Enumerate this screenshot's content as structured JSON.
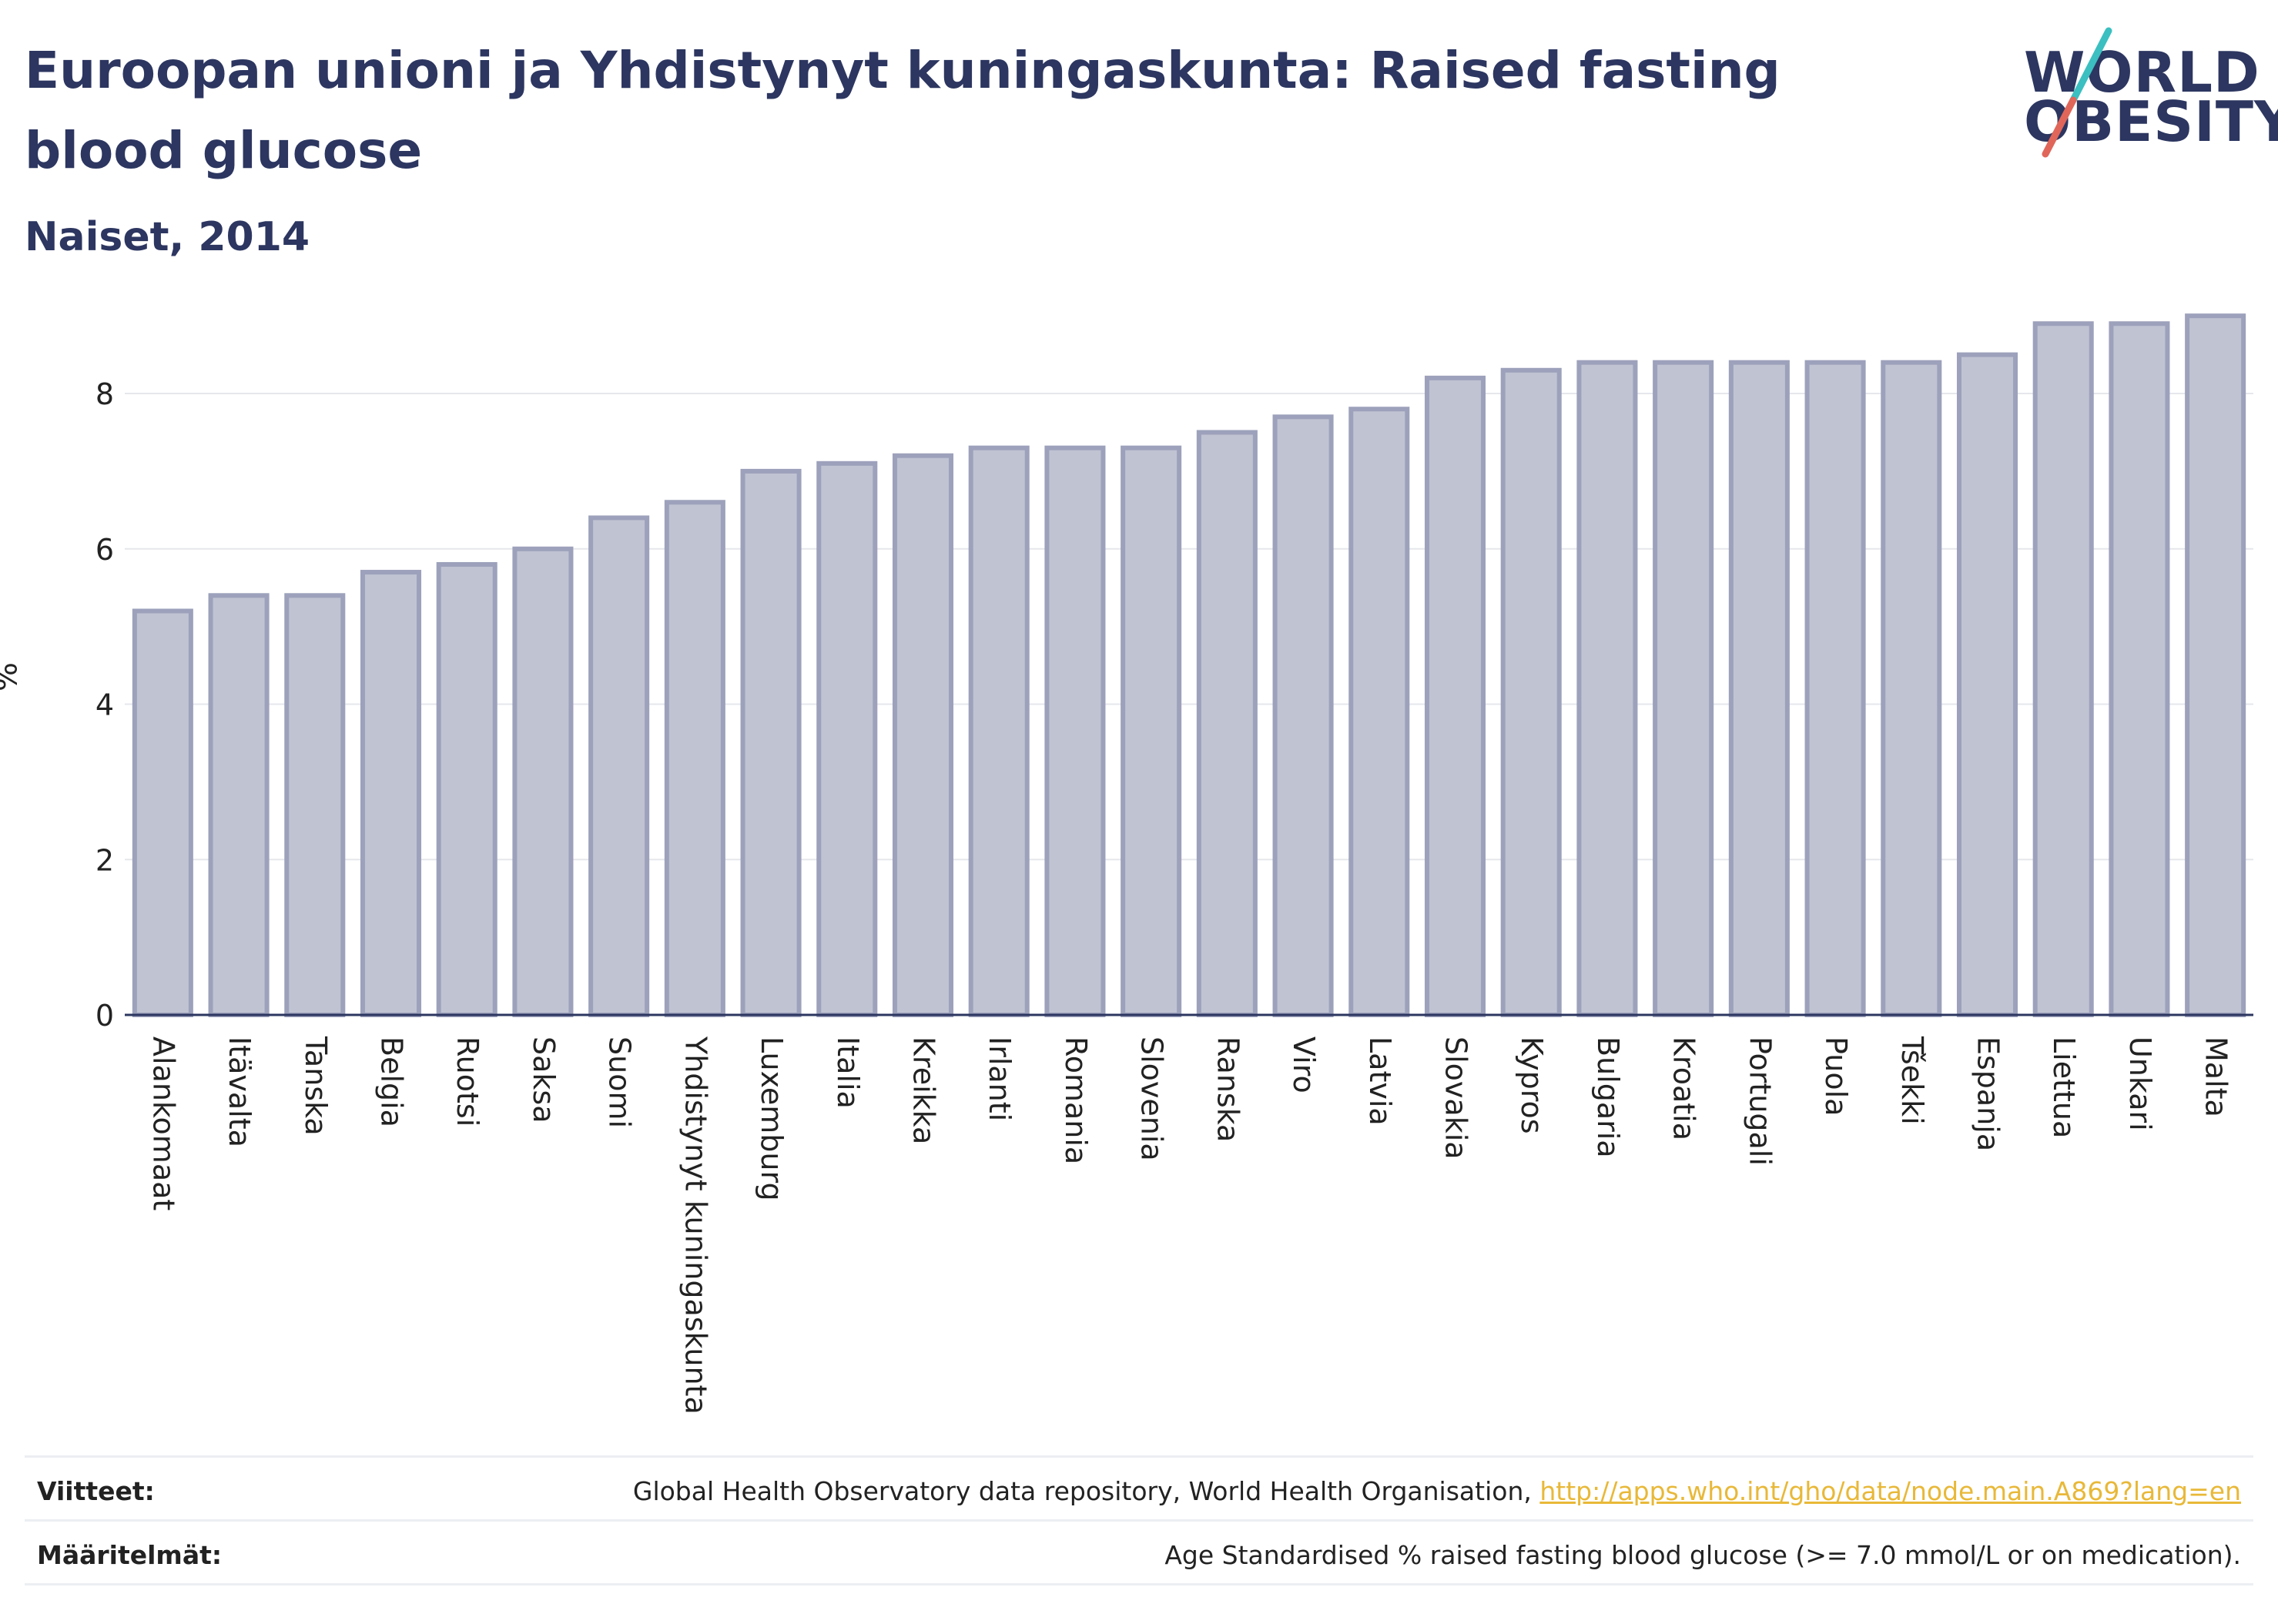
{
  "header": {
    "title": "Euroopan unioni ja Yhdistynyt kuningaskunta: Raised fasting blood glucose",
    "subtitle": "Naiset, 2014"
  },
  "logo": {
    "line1": "WORLD",
    "line2": "OBESITY",
    "accent_teal": "#3bbfc0",
    "accent_red": "#e0665a"
  },
  "colors": {
    "bar_fill": "#c0c3d2",
    "bar_stroke": "#9da1bb",
    "text": "#2c3660",
    "link": "#e8b838"
  },
  "chart_data": {
    "type": "bar",
    "title": "Euroopan unioni ja Yhdistynyt kuningaskunta: Raised fasting blood glucose",
    "subtitle": "Naiset, 2014",
    "ylabel": "%",
    "ylim": [
      0,
      9.2
    ],
    "yticks": [
      0,
      2,
      4,
      6,
      8
    ],
    "grid": true,
    "categories": [
      "Alankomaat",
      "Itävalta",
      "Tanska",
      "Belgia",
      "Ruotsi",
      "Saksa",
      "Suomi",
      "Yhdistynyt kuningaskunta",
      "Luxemburg",
      "Italia",
      "Kreikka",
      "Irlanti",
      "Romania",
      "Slovenia",
      "Ranska",
      "Viro",
      "Latvia",
      "Slovakia",
      "Kypros",
      "Bulgaria",
      "Kroatia",
      "Portugali",
      "Puola",
      "Tšekki",
      "Espanja",
      "Liettua",
      "Unkari",
      "Malta"
    ],
    "values": [
      5.2,
      5.4,
      5.4,
      5.7,
      5.8,
      6.0,
      6.4,
      6.6,
      7.0,
      7.1,
      7.2,
      7.3,
      7.3,
      7.3,
      7.5,
      7.7,
      7.8,
      8.2,
      8.3,
      8.4,
      8.4,
      8.4,
      8.4,
      8.4,
      8.5,
      8.9,
      8.9,
      9.0
    ]
  },
  "footer": {
    "sources_label": "Viitteet:",
    "sources_text": "Global Health Observatory data repository, World Health Organisation, ",
    "sources_link": "http://apps.who.int/gho/data/node.main.A869?lang=en",
    "definitions_label": "Määritelmät:",
    "definitions_text": "Age Standardised % raised fasting blood glucose (>= 7.0 mmol/L or on medication)."
  }
}
